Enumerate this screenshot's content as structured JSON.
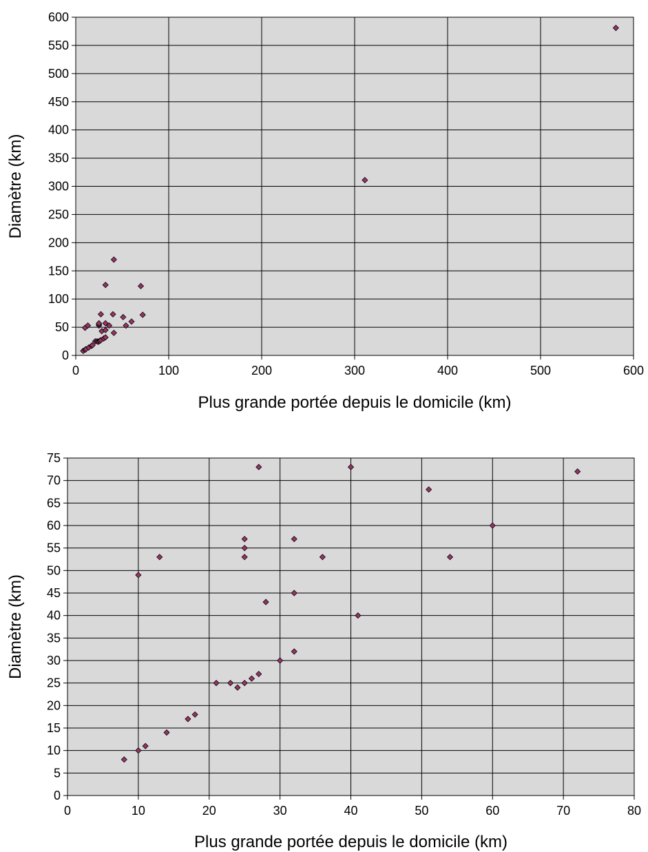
{
  "chart_data": [
    {
      "type": "scatter",
      "title": "",
      "xlabel": "Plus grande portée depuis le domicile (km)",
      "ylabel": "Diamètre (km)",
      "xlim": [
        0,
        600
      ],
      "ylim": [
        0,
        600
      ],
      "xticks": [
        "0",
        "100",
        "200",
        "300",
        "400",
        "500",
        "600"
      ],
      "yticks": [
        "0",
        "50",
        "100",
        "150",
        "200",
        "250",
        "300",
        "350",
        "400",
        "450",
        "500",
        "550",
        "600"
      ],
      "grid": true,
      "legend": "none",
      "plot_background": "#d9d9d9",
      "marker_color": "#993366",
      "series": [
        {
          "points": [
            [
              8,
              8
            ],
            [
              10,
              10
            ],
            [
              10,
              49
            ],
            [
              11,
              11
            ],
            [
              13,
              53
            ],
            [
              14,
              14
            ],
            [
              17,
              17
            ],
            [
              18,
              18
            ],
            [
              21,
              25
            ],
            [
              23,
              25
            ],
            [
              24,
              24
            ],
            [
              25,
              25
            ],
            [
              25,
              53
            ],
            [
              25,
              55
            ],
            [
              25,
              57
            ],
            [
              26,
              26
            ],
            [
              27,
              27
            ],
            [
              27,
              73
            ],
            [
              28,
              43
            ],
            [
              30,
              30
            ],
            [
              32,
              32
            ],
            [
              32,
              45
            ],
            [
              32,
              57
            ],
            [
              32,
              125
            ],
            [
              36,
              53
            ],
            [
              40,
              73
            ],
            [
              41,
              40
            ],
            [
              41,
              170
            ],
            [
              51,
              68
            ],
            [
              54,
              53
            ],
            [
              60,
              60
            ],
            [
              70,
              123
            ],
            [
              72,
              72
            ],
            [
              311,
              311
            ],
            [
              581,
              581
            ]
          ]
        }
      ]
    },
    {
      "type": "scatter",
      "title": "",
      "xlabel": "Plus grande portée depuis le domicile (km)",
      "ylabel": "Diamètre (km)",
      "xlim": [
        0,
        80
      ],
      "ylim": [
        0,
        75
      ],
      "xticks": [
        "0",
        "10",
        "20",
        "30",
        "40",
        "50",
        "60",
        "70",
        "80"
      ],
      "yticks": [
        "0",
        "5",
        "10",
        "15",
        "20",
        "25",
        "30",
        "35",
        "40",
        "45",
        "50",
        "55",
        "60",
        "65",
        "70",
        "75"
      ],
      "grid": true,
      "legend": "none",
      "plot_background": "#d9d9d9",
      "marker_color": "#993366",
      "series": [
        {
          "points": [
            [
              8,
              8
            ],
            [
              10,
              10
            ],
            [
              10,
              49
            ],
            [
              11,
              11
            ],
            [
              13,
              53
            ],
            [
              14,
              14
            ],
            [
              17,
              17
            ],
            [
              18,
              18
            ],
            [
              21,
              25
            ],
            [
              23,
              25
            ],
            [
              24,
              24
            ],
            [
              25,
              25
            ],
            [
              25,
              53
            ],
            [
              25,
              55
            ],
            [
              25,
              57
            ],
            [
              26,
              26
            ],
            [
              27,
              27
            ],
            [
              27,
              73
            ],
            [
              28,
              43
            ],
            [
              30,
              30
            ],
            [
              32,
              32
            ],
            [
              32,
              45
            ],
            [
              32,
              57
            ],
            [
              36,
              53
            ],
            [
              40,
              73
            ],
            [
              41,
              40
            ],
            [
              51,
              68
            ],
            [
              54,
              53
            ],
            [
              60,
              60
            ],
            [
              72,
              72
            ]
          ]
        }
      ]
    }
  ]
}
